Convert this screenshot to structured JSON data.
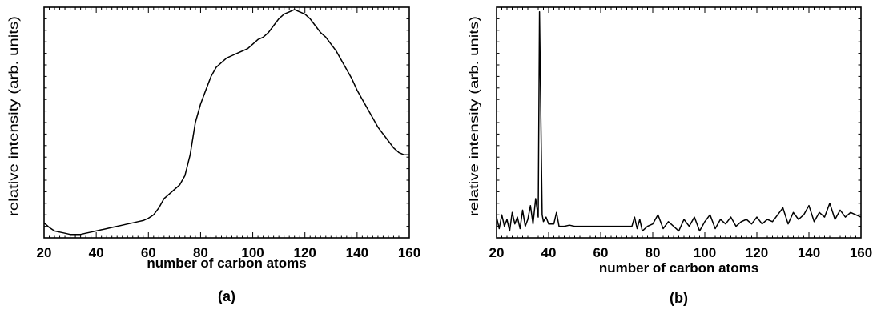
{
  "chart_data": [
    {
      "type": "line",
      "panel_label": "(a)",
      "xlabel": "number of carbon atoms",
      "ylabel": "relative intensity (arb. units)",
      "xlim": [
        20,
        160
      ],
      "ylim": [
        0,
        100
      ],
      "xticks": [
        20,
        40,
        60,
        80,
        100,
        120,
        140,
        160
      ],
      "yticks_shown": false,
      "grid": false,
      "series": [
        {
          "x": [
            20,
            22,
            24,
            26,
            28,
            30,
            32,
            34,
            36,
            38,
            40,
            42,
            44,
            46,
            48,
            50,
            52,
            54,
            56,
            58,
            60,
            62,
            64,
            66,
            68,
            70,
            72,
            74,
            76,
            78,
            80,
            82,
            84,
            86,
            88,
            90,
            92,
            94,
            96,
            98,
            100,
            102,
            104,
            106,
            108,
            110,
            112,
            114,
            116,
            118,
            120,
            122,
            124,
            126,
            128,
            130,
            132,
            134,
            136,
            138,
            140,
            142,
            144,
            146,
            148,
            150,
            152,
            154,
            156,
            158,
            160
          ],
          "y": [
            6.5,
            4.5,
            3,
            2.5,
            2,
            1.5,
            1.5,
            1.5,
            2,
            2.5,
            3,
            3.5,
            4,
            4.5,
            5,
            5.5,
            6,
            6.5,
            7,
            7.5,
            8.5,
            10,
            13,
            17,
            19,
            21,
            23,
            27,
            36,
            50,
            58,
            64,
            70,
            74,
            76,
            78,
            79,
            80,
            81,
            82,
            84,
            86,
            87,
            89,
            92,
            95,
            97,
            98,
            99,
            98,
            97,
            95,
            92,
            89,
            87,
            84,
            81,
            77,
            73,
            69,
            64,
            60,
            56,
            52,
            48,
            45,
            42,
            39,
            37,
            36,
            36
          ]
        }
      ]
    },
    {
      "type": "line",
      "panel_label": "(b)",
      "xlabel": "number of carbon atoms",
      "ylabel": "relative intensity (arb. units)",
      "xlim": [
        20,
        160
      ],
      "ylim": [
        0,
        100
      ],
      "xticks": [
        20,
        40,
        60,
        80,
        100,
        120,
        140,
        160
      ],
      "yticks_shown": false,
      "grid": false,
      "series": [
        {
          "x": [
            20,
            21,
            22,
            23,
            24,
            25,
            26,
            27,
            28,
            29,
            30,
            31,
            32,
            33,
            34,
            35,
            36,
            36.5,
            37,
            37.5,
            38,
            39,
            40,
            42,
            43,
            44,
            46,
            48,
            50,
            52,
            54,
            56,
            58,
            60,
            62,
            64,
            66,
            68,
            70,
            72,
            73,
            74,
            75,
            76,
            78,
            80,
            82,
            84,
            86,
            88,
            90,
            92,
            94,
            96,
            98,
            100,
            102,
            104,
            106,
            108,
            110,
            112,
            114,
            116,
            118,
            120,
            122,
            124,
            126,
            128,
            130,
            132,
            134,
            136,
            138,
            140,
            142,
            144,
            146,
            148,
            150,
            152,
            154,
            156,
            158,
            160
          ],
          "y": [
            9,
            4,
            10,
            5,
            8,
            3,
            11,
            6,
            9,
            4,
            12,
            5,
            8,
            14,
            6,
            17,
            9,
            98,
            52,
            10,
            7,
            9,
            6,
            6,
            11,
            5,
            5,
            5.5,
            5,
            5,
            5,
            5,
            5,
            5,
            5,
            5,
            5,
            5,
            5,
            5,
            9,
            4,
            8,
            3,
            5,
            6,
            10,
            4,
            7,
            5,
            3,
            8,
            5,
            9,
            3,
            7,
            10,
            4,
            8,
            6,
            9,
            5,
            7,
            8,
            6,
            9,
            6,
            8,
            7,
            10,
            13,
            6,
            11,
            8,
            10,
            14,
            7,
            11,
            9,
            15,
            8,
            12,
            9,
            11,
            10,
            9
          ]
        }
      ]
    }
  ]
}
